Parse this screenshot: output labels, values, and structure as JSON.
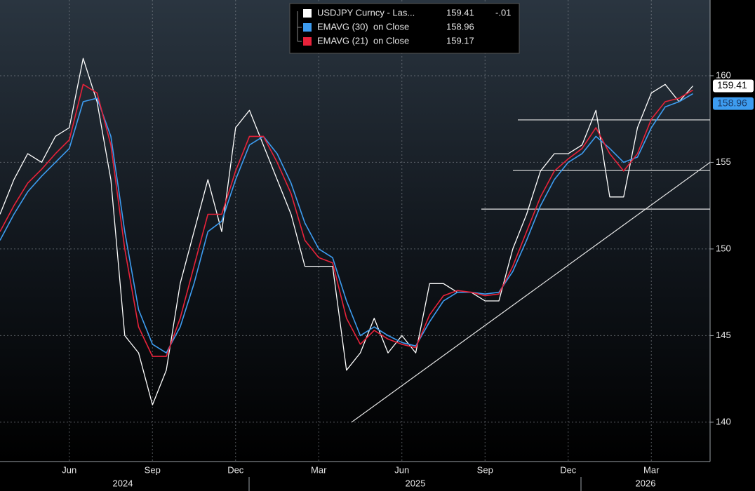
{
  "chart_data": {
    "type": "line",
    "categories": [
      null,
      null,
      null,
      null,
      null,
      "Jun",
      null,
      null,
      null,
      null,
      null,
      "Sep",
      null,
      null,
      null,
      null,
      null,
      "Dec",
      null,
      null,
      null,
      null,
      null,
      "Mar",
      null,
      null,
      null,
      null,
      null,
      "Jun",
      null,
      null,
      null,
      null,
      null,
      "Sep",
      null,
      null,
      null,
      null,
      null,
      "Dec",
      null,
      null,
      null,
      null,
      null,
      "Mar",
      null,
      null,
      null
    ],
    "year_labels": [
      "2024",
      "2025",
      "2026"
    ],
    "series": [
      {
        "name": "USDJPY Curncy - Las...",
        "color": "#ffffff",
        "last_value": 159.41,
        "change": {
          "value": -0.01,
          "label": "-.01"
        },
        "values": [
          152,
          154,
          155.5,
          155,
          156.5,
          157,
          161,
          158.5,
          154,
          145,
          144,
          141,
          143,
          148,
          151,
          154,
          151,
          157,
          158,
          156,
          154,
          152,
          149,
          149,
          149,
          143,
          144,
          146,
          144,
          145,
          144,
          148,
          148,
          147.5,
          147.5,
          147,
          147,
          150,
          152,
          154.5,
          155.5,
          155.5,
          156,
          158,
          153,
          153,
          157,
          159,
          159.5,
          158.5,
          159.41
        ]
      },
      {
        "name": "EMAVG (30)  on Close",
        "color": "#3d9cf0",
        "last_value": 158.96,
        "values": [
          150.5,
          152,
          153.3,
          154.2,
          155,
          155.8,
          158.5,
          158.7,
          156.5,
          151,
          146.5,
          144.5,
          144,
          145.5,
          148,
          151,
          151.6,
          154,
          156,
          156.5,
          155.5,
          153.8,
          151.5,
          150,
          149.5,
          147,
          145,
          145.5,
          145,
          144.6,
          144.4,
          145.8,
          147,
          147.5,
          147.5,
          147.4,
          147.5,
          148.7,
          150.5,
          152.5,
          154,
          155,
          155.5,
          156.5,
          155.8,
          155,
          155.3,
          157,
          158.2,
          158.5,
          158.96
        ]
      },
      {
        "name": "EMAVG (21)  on Close",
        "color": "#e8223a",
        "last_value": 159.17,
        "values": [
          151,
          152.5,
          153.8,
          154.6,
          155.5,
          156.3,
          159.5,
          159,
          156,
          150,
          145.5,
          143.8,
          143.8,
          146,
          149,
          152,
          152,
          154.5,
          156.5,
          156.5,
          155,
          153.2,
          150.5,
          149.5,
          149.2,
          146,
          144.5,
          145.3,
          144.8,
          144.5,
          144.3,
          146.2,
          147.3,
          147.6,
          147.5,
          147.3,
          147.4,
          149,
          151,
          153,
          154.5,
          155.2,
          155.8,
          157,
          155.5,
          154.5,
          155.5,
          157.5,
          158.5,
          158.7,
          159.17
        ]
      }
    ],
    "hlines": [
      157.45,
      154.53,
      152.3
    ],
    "trendline": [
      140,
      155
    ],
    "ylim": [
      137.73,
      164.37
    ],
    "yticks": [
      140,
      145,
      150,
      155,
      160
    ],
    "grid": true
  }
}
